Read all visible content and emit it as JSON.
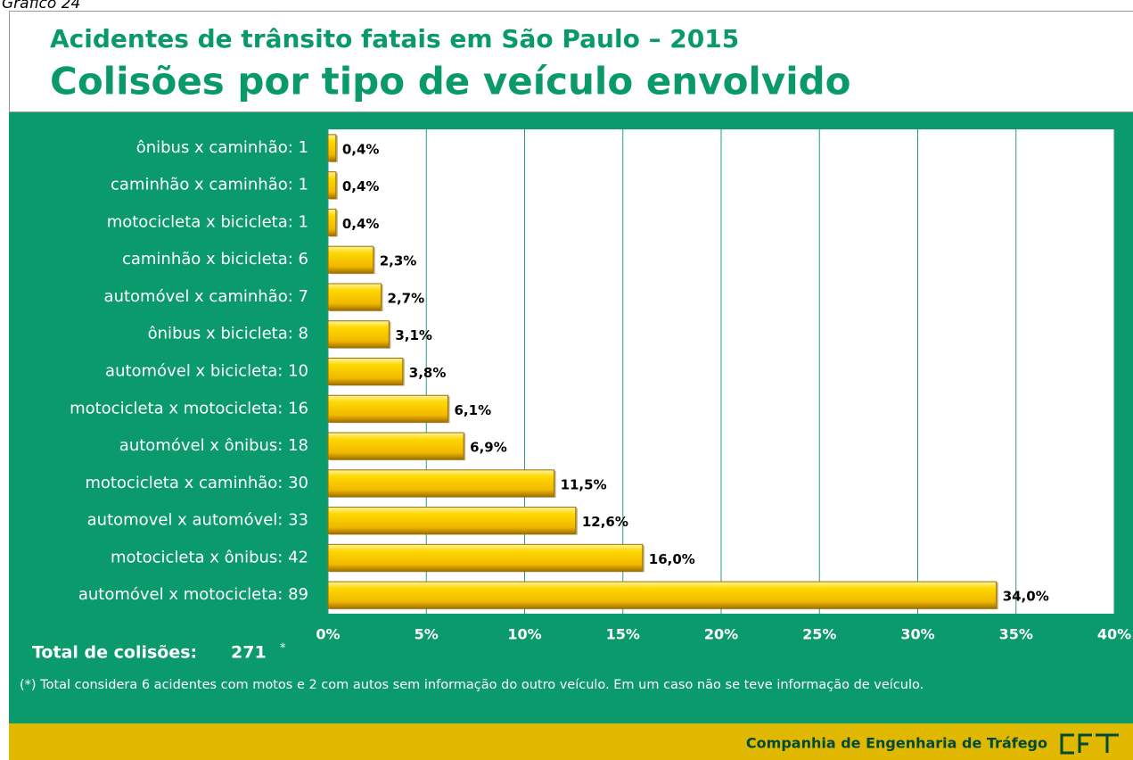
{
  "header_label": "Gráfico 24",
  "chart_data": {
    "type": "hbar",
    "title": "Acidentes de trânsito fatais em São Paulo – 2015",
    "subtitle": "Colisões por tipo de veículo envolvido",
    "categories": [
      "ônibus x caminhão: 1",
      "caminhão x caminhão: 1",
      "motocicleta x bicicleta: 1",
      "caminhão x bicicleta: 6",
      "automóvel x caminhão: 7",
      "ônibus x bicicleta: 8",
      "automóvel x bicicleta: 10",
      "motocicleta x motocicleta: 16",
      "automóvel x ônibus: 18",
      "motocicleta x caminhão: 30",
      "automovel x automóvel: 33",
      "motocicleta x ônibus: 42",
      "automóvel x motocicleta: 89"
    ],
    "values": [
      0.4,
      0.4,
      0.4,
      2.3,
      2.7,
      3.1,
      3.8,
      6.1,
      6.9,
      11.5,
      12.6,
      16.0,
      34.0
    ],
    "value_labels": [
      "0,4%",
      "0,4%",
      "0,4%",
      "2,3%",
      "2,7%",
      "3,1%",
      "3,8%",
      "6,1%",
      "6,9%",
      "11,5%",
      "12,6%",
      "16,0%",
      "34,0%"
    ],
    "color": "#f5c400",
    "xlim": [
      0,
      40
    ],
    "xticks": [
      {
        "value": 0,
        "label": "0%"
      },
      {
        "value": 5,
        "label": "5%"
      },
      {
        "value": 10,
        "label": "10%"
      },
      {
        "value": 15,
        "label": "15%"
      },
      {
        "value": 20,
        "label": "20%"
      },
      {
        "value": 25,
        "label": "25%"
      },
      {
        "value": 30,
        "label": "30%"
      },
      {
        "value": 35,
        "label": "35%"
      },
      {
        "value": 40,
        "label": "40%"
      }
    ],
    "grid": true
  },
  "total": {
    "label": "Total de colisões:",
    "value": 271,
    "note_mark": "*"
  },
  "footnote": "(*) Total considera 6 acidentes com motos e 2 com autos sem informação do outro veículo. Em um caso não se teve informação de veículo.",
  "footer": "Companhia de Engenharia de Tráfego"
}
